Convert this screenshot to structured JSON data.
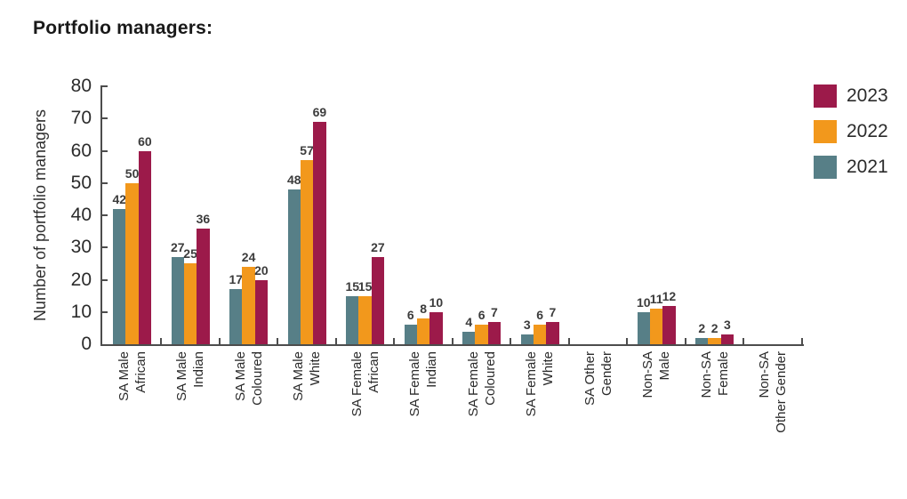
{
  "chart_data": {
    "type": "bar",
    "title": "Portfolio managers:",
    "xlabel": "",
    "ylabel": "Number of portfolio managers",
    "ylim": [
      0,
      80
    ],
    "ytick_step": 10,
    "grid": false,
    "legend_position": "right",
    "legend_order": [
      "2023",
      "2022",
      "2021"
    ],
    "categories": [
      "SA Male African",
      "SA Male Indian",
      "SA Male Coloured",
      "SA Male White",
      "SA Female African",
      "SA Female Indian",
      "SA Female Coloured",
      "SA Female White",
      "SA Other Gender",
      "Non-SA Male",
      "Non-SA Female",
      "Non-SA Other Gender"
    ],
    "category_lines": [
      [
        "SA Male",
        "African"
      ],
      [
        "SA Male",
        "Indian"
      ],
      [
        "SA Male",
        "Coloured"
      ],
      [
        "SA Male",
        "White"
      ],
      [
        "SA Female",
        "African"
      ],
      [
        "SA Female",
        "Indian"
      ],
      [
        "SA Female",
        "Coloured"
      ],
      [
        "SA Female",
        "White"
      ],
      [
        "SA Other",
        "Gender"
      ],
      [
        "Non-SA",
        "Male"
      ],
      [
        "Non-SA",
        "Female"
      ],
      [
        "Non-SA",
        "Other Gender"
      ]
    ],
    "series": [
      {
        "name": "2021",
        "color": "#577F87",
        "values": [
          42,
          27,
          17,
          48,
          15,
          6,
          4,
          3,
          0,
          10,
          2,
          0
        ]
      },
      {
        "name": "2022",
        "color": "#F2981C",
        "values": [
          50,
          25,
          24,
          57,
          15,
          8,
          6,
          6,
          0,
          11,
          2,
          0
        ]
      },
      {
        "name": "2023",
        "color": "#9C1A4A",
        "values": [
          60,
          36,
          20,
          69,
          27,
          10,
          7,
          7,
          0,
          12,
          3,
          0
        ]
      }
    ]
  }
}
